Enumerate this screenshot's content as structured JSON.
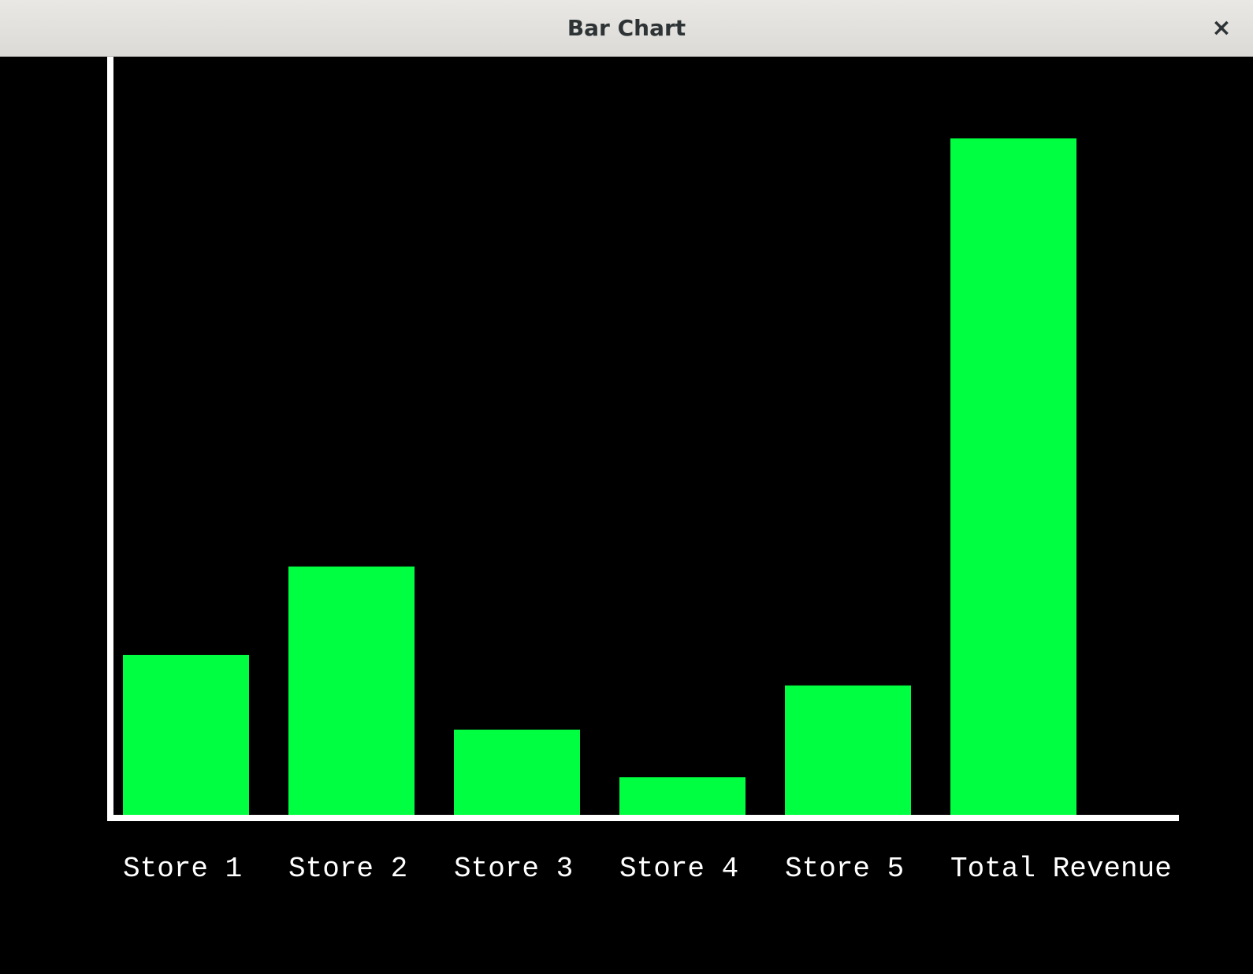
{
  "window": {
    "title": "Bar Chart",
    "close_glyph": "×",
    "close_icon": "close-icon"
  },
  "chart_data": {
    "type": "bar",
    "categories": [
      "Store 1",
      "Store 2",
      "Store 3",
      "Store 4",
      "Store 5",
      "Total Revenue"
    ],
    "values": [
      2.4,
      3.7,
      1.3,
      0.6,
      1.95,
      10.0
    ],
    "ylim": [
      0,
      11.2
    ],
    "grid": false,
    "bar_color": "#00ff40",
    "axis_color": "#ffffff",
    "background": "#000000"
  }
}
